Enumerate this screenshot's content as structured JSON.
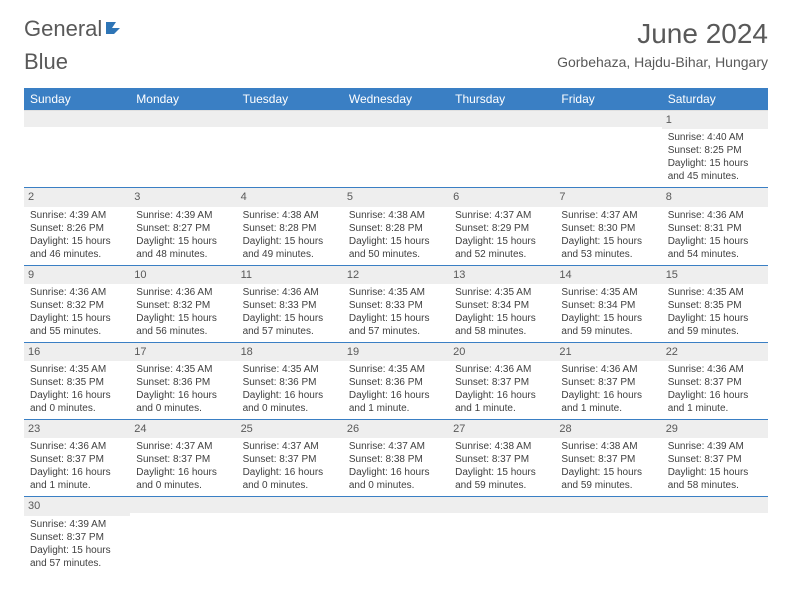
{
  "logo": {
    "text1": "General",
    "text2": "Blue"
  },
  "brand_color": "#2e75b6",
  "header_bg": "#3a7fc4",
  "stripe_bg": "#eeeeee",
  "title": "June 2024",
  "location": "Gorbehaza, Hajdu-Bihar, Hungary",
  "weekdays": [
    "Sunday",
    "Monday",
    "Tuesday",
    "Wednesday",
    "Thursday",
    "Friday",
    "Saturday"
  ],
  "weeks": [
    [
      null,
      null,
      null,
      null,
      null,
      null,
      {
        "n": "1",
        "sr": "Sunrise: 4:40 AM",
        "ss": "Sunset: 8:25 PM",
        "d1": "Daylight: 15 hours",
        "d2": "and 45 minutes."
      }
    ],
    [
      {
        "n": "2",
        "sr": "Sunrise: 4:39 AM",
        "ss": "Sunset: 8:26 PM",
        "d1": "Daylight: 15 hours",
        "d2": "and 46 minutes."
      },
      {
        "n": "3",
        "sr": "Sunrise: 4:39 AM",
        "ss": "Sunset: 8:27 PM",
        "d1": "Daylight: 15 hours",
        "d2": "and 48 minutes."
      },
      {
        "n": "4",
        "sr": "Sunrise: 4:38 AM",
        "ss": "Sunset: 8:28 PM",
        "d1": "Daylight: 15 hours",
        "d2": "and 49 minutes."
      },
      {
        "n": "5",
        "sr": "Sunrise: 4:38 AM",
        "ss": "Sunset: 8:28 PM",
        "d1": "Daylight: 15 hours",
        "d2": "and 50 minutes."
      },
      {
        "n": "6",
        "sr": "Sunrise: 4:37 AM",
        "ss": "Sunset: 8:29 PM",
        "d1": "Daylight: 15 hours",
        "d2": "and 52 minutes."
      },
      {
        "n": "7",
        "sr": "Sunrise: 4:37 AM",
        "ss": "Sunset: 8:30 PM",
        "d1": "Daylight: 15 hours",
        "d2": "and 53 minutes."
      },
      {
        "n": "8",
        "sr": "Sunrise: 4:36 AM",
        "ss": "Sunset: 8:31 PM",
        "d1": "Daylight: 15 hours",
        "d2": "and 54 minutes."
      }
    ],
    [
      {
        "n": "9",
        "sr": "Sunrise: 4:36 AM",
        "ss": "Sunset: 8:32 PM",
        "d1": "Daylight: 15 hours",
        "d2": "and 55 minutes."
      },
      {
        "n": "10",
        "sr": "Sunrise: 4:36 AM",
        "ss": "Sunset: 8:32 PM",
        "d1": "Daylight: 15 hours",
        "d2": "and 56 minutes."
      },
      {
        "n": "11",
        "sr": "Sunrise: 4:36 AM",
        "ss": "Sunset: 8:33 PM",
        "d1": "Daylight: 15 hours",
        "d2": "and 57 minutes."
      },
      {
        "n": "12",
        "sr": "Sunrise: 4:35 AM",
        "ss": "Sunset: 8:33 PM",
        "d1": "Daylight: 15 hours",
        "d2": "and 57 minutes."
      },
      {
        "n": "13",
        "sr": "Sunrise: 4:35 AM",
        "ss": "Sunset: 8:34 PM",
        "d1": "Daylight: 15 hours",
        "d2": "and 58 minutes."
      },
      {
        "n": "14",
        "sr": "Sunrise: 4:35 AM",
        "ss": "Sunset: 8:34 PM",
        "d1": "Daylight: 15 hours",
        "d2": "and 59 minutes."
      },
      {
        "n": "15",
        "sr": "Sunrise: 4:35 AM",
        "ss": "Sunset: 8:35 PM",
        "d1": "Daylight: 15 hours",
        "d2": "and 59 minutes."
      }
    ],
    [
      {
        "n": "16",
        "sr": "Sunrise: 4:35 AM",
        "ss": "Sunset: 8:35 PM",
        "d1": "Daylight: 16 hours",
        "d2": "and 0 minutes."
      },
      {
        "n": "17",
        "sr": "Sunrise: 4:35 AM",
        "ss": "Sunset: 8:36 PM",
        "d1": "Daylight: 16 hours",
        "d2": "and 0 minutes."
      },
      {
        "n": "18",
        "sr": "Sunrise: 4:35 AM",
        "ss": "Sunset: 8:36 PM",
        "d1": "Daylight: 16 hours",
        "d2": "and 0 minutes."
      },
      {
        "n": "19",
        "sr": "Sunrise: 4:35 AM",
        "ss": "Sunset: 8:36 PM",
        "d1": "Daylight: 16 hours",
        "d2": "and 1 minute."
      },
      {
        "n": "20",
        "sr": "Sunrise: 4:36 AM",
        "ss": "Sunset: 8:37 PM",
        "d1": "Daylight: 16 hours",
        "d2": "and 1 minute."
      },
      {
        "n": "21",
        "sr": "Sunrise: 4:36 AM",
        "ss": "Sunset: 8:37 PM",
        "d1": "Daylight: 16 hours",
        "d2": "and 1 minute."
      },
      {
        "n": "22",
        "sr": "Sunrise: 4:36 AM",
        "ss": "Sunset: 8:37 PM",
        "d1": "Daylight: 16 hours",
        "d2": "and 1 minute."
      }
    ],
    [
      {
        "n": "23",
        "sr": "Sunrise: 4:36 AM",
        "ss": "Sunset: 8:37 PM",
        "d1": "Daylight: 16 hours",
        "d2": "and 1 minute."
      },
      {
        "n": "24",
        "sr": "Sunrise: 4:37 AM",
        "ss": "Sunset: 8:37 PM",
        "d1": "Daylight: 16 hours",
        "d2": "and 0 minutes."
      },
      {
        "n": "25",
        "sr": "Sunrise: 4:37 AM",
        "ss": "Sunset: 8:37 PM",
        "d1": "Daylight: 16 hours",
        "d2": "and 0 minutes."
      },
      {
        "n": "26",
        "sr": "Sunrise: 4:37 AM",
        "ss": "Sunset: 8:38 PM",
        "d1": "Daylight: 16 hours",
        "d2": "and 0 minutes."
      },
      {
        "n": "27",
        "sr": "Sunrise: 4:38 AM",
        "ss": "Sunset: 8:37 PM",
        "d1": "Daylight: 15 hours",
        "d2": "and 59 minutes."
      },
      {
        "n": "28",
        "sr": "Sunrise: 4:38 AM",
        "ss": "Sunset: 8:37 PM",
        "d1": "Daylight: 15 hours",
        "d2": "and 59 minutes."
      },
      {
        "n": "29",
        "sr": "Sunrise: 4:39 AM",
        "ss": "Sunset: 8:37 PM",
        "d1": "Daylight: 15 hours",
        "d2": "and 58 minutes."
      }
    ],
    [
      {
        "n": "30",
        "sr": "Sunrise: 4:39 AM",
        "ss": "Sunset: 8:37 PM",
        "d1": "Daylight: 15 hours",
        "d2": "and 57 minutes."
      },
      null,
      null,
      null,
      null,
      null,
      null
    ]
  ]
}
